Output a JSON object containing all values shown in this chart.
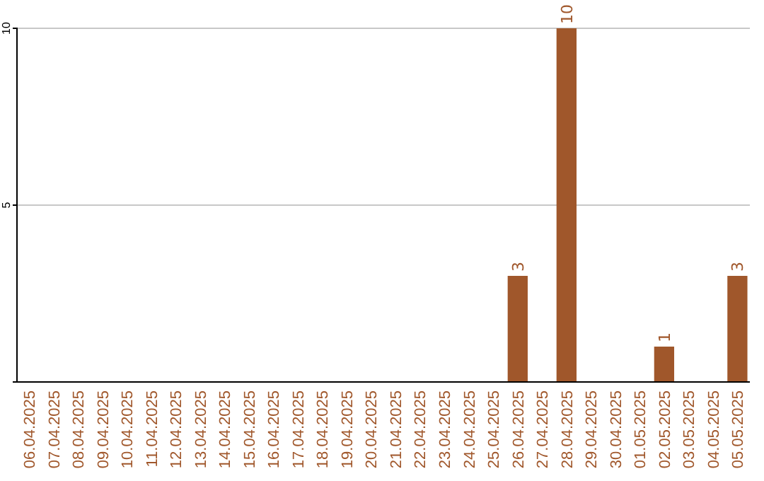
{
  "chart_data": {
    "type": "bar",
    "categories": [
      "06.04.2025",
      "07.04.2025",
      "08.04.2025",
      "09.04.2025",
      "10.04.2025",
      "11.04.2025",
      "12.04.2025",
      "13.04.2025",
      "14.04.2025",
      "15.04.2025",
      "16.04.2025",
      "17.04.2025",
      "18.04.2025",
      "19.04.2025",
      "20.04.2025",
      "21.04.2025",
      "22.04.2025",
      "23.04.2025",
      "24.04.2025",
      "25.04.2025",
      "26.04.2025",
      "27.04.2025",
      "28.04.2025",
      "29.04.2025",
      "30.04.2025",
      "01.05.2025",
      "02.05.2025",
      "03.05.2025",
      "04.05.2025",
      "05.05.2025"
    ],
    "values": [
      0,
      0,
      0,
      0,
      0,
      0,
      0,
      0,
      0,
      0,
      0,
      0,
      0,
      0,
      0,
      0,
      0,
      0,
      0,
      0,
      3,
      0,
      10,
      0,
      0,
      0,
      1,
      0,
      0,
      3
    ],
    "value_labels": [
      null,
      null,
      null,
      null,
      null,
      null,
      null,
      null,
      null,
      null,
      null,
      null,
      null,
      null,
      null,
      null,
      null,
      null,
      null,
      null,
      "3",
      null,
      "10",
      null,
      null,
      null,
      "1",
      null,
      null,
      "3"
    ],
    "color": "#a0572b",
    "ylim": [
      0,
      10
    ],
    "yticks": [
      5,
      10
    ],
    "grid": "y"
  }
}
